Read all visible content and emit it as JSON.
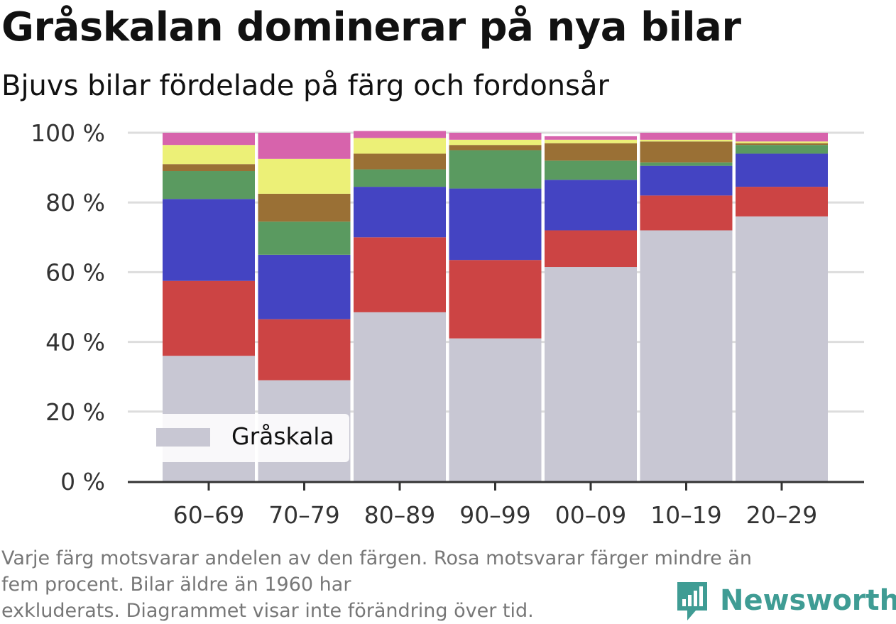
{
  "title": "Gråskalan dominerar på nya bilar",
  "subtitle": "Bjuvs bilar fördelade på färg och fordonsår",
  "footnote_lines": [
    "Varje färg motsvarar andelen av den färgen. Rosa motsvarar färger mindre än",
    "fem procent. Bilar äldre än 1960 har",
    "exkluderats. Diagrammet visar inte förändring över tid."
  ],
  "brand": "Newsworthy",
  "colors": {
    "grayscale": "#c8c7d3",
    "red": "#cc4444",
    "blue": "#4444c2",
    "green": "#5a9a60",
    "brown": "#9a7035",
    "yellow": "#ecf077",
    "pink": "#d763ac",
    "brand": "#3f9c94"
  },
  "legend": {
    "label": "Gråskala",
    "color": "#c8c7d3"
  },
  "chart_data": {
    "type": "bar",
    "stacked": true,
    "categories": [
      "60–69",
      "70–79",
      "80–89",
      "90–99",
      "00–09",
      "10–19",
      "20–29"
    ],
    "y_ticks": [
      "0 %",
      "20 %",
      "40 %",
      "60 %",
      "80 %",
      "100 %"
    ],
    "ylim": [
      0,
      100
    ],
    "grid": true,
    "legend_placement": "bottom-left",
    "series": [
      {
        "name": "Gråskala",
        "color": "#c8c7d3",
        "values": [
          36,
          29,
          48.5,
          41,
          61.5,
          72,
          76
        ]
      },
      {
        "color": "#cc4444",
        "values": [
          21.5,
          17.5,
          21.5,
          22.5,
          10.5,
          10,
          8.5
        ]
      },
      {
        "color": "#4444c2",
        "values": [
          23.5,
          18.5,
          14.5,
          20.5,
          14.5,
          8.5,
          9.5
        ]
      },
      {
        "color": "#5a9a60",
        "values": [
          8,
          9.5,
          5,
          11,
          5.5,
          1,
          2.5
        ]
      },
      {
        "color": "#9a7035",
        "values": [
          2,
          8,
          4.5,
          1.5,
          5,
          6,
          0.5
        ]
      },
      {
        "color": "#ecf077",
        "values": [
          5.5,
          10,
          4.5,
          1.5,
          1,
          0.5,
          0.5
        ]
      },
      {
        "color": "#d763ac",
        "values": [
          3.5,
          7.5,
          2,
          2,
          1,
          2,
          2.5
        ]
      }
    ]
  }
}
